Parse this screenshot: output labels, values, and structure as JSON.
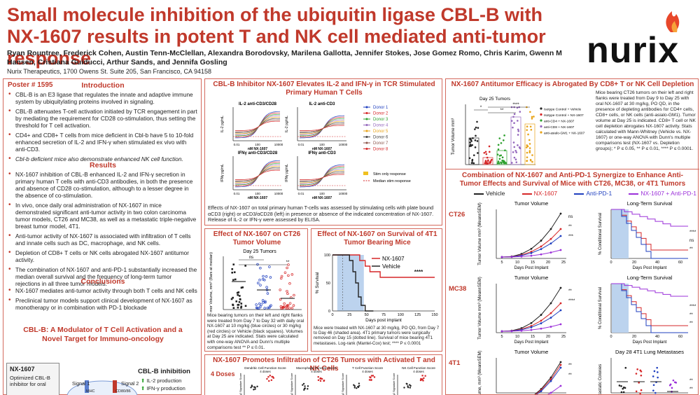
{
  "header": {
    "title": "Small molecule inhibition of the ubiquitin ligase CBL-B with NX-1607 results in potent T and NK cell mediated anti-tumor response",
    "authors": "Ryan Rountree, Frederick Cohen, Austin Tenn-McClellan, Alexandra Borodovsky, Marilena Gallotta, Jennifer Stokes, Jose Gomez Romo, Chris Karim, Gwenn M Hansen, Cristiana Guiducci, Arthur Sands, and Jennifa Gosling",
    "affiliation": "Nurix Therapeutics, 1700 Owens St. Suite 205, San Francisco, CA 94158",
    "logo_text": "nurix"
  },
  "col1": {
    "poster_no": "Poster # 1595",
    "intro_title": "Introduction",
    "intro": [
      "CBL-B is an E3 ligase that regulates the innate and adaptive immune system by ubiquitylating proteins involved in signaling.",
      "CBL-B attenuates T-cell activation initiated by TCR engagement in part by mediating the requirement for CD28 co-stimulation, thus setting the threshold for T cell activation.",
      "CD4+ and CD8+ T cells from mice deficient in Cbl-b have 5 to 10-fold enhanced secretion of IL-2 and IFN-γ when stimulated ex vivo with anti-CD3.",
      "Cbl-b deficient mice also demonstrate enhanced NK cell function."
    ],
    "results_title": "Results",
    "results": [
      "NX-1607 inhibition of CBL-B enhanced IL-2 and IFN-γ secretion in primary human T cells with anti-CD3 antibodies, in both the presence and absence of CD28 co-stimulation, although to a lesser degree in the absence of co-stimulation.",
      "In vivo, once daily oral administration of NX-1607 in mice demonstrated significant anti-tumor activity in two colon carcinoma tumor models, CT26 and MC38, as well as a metastatic triple-negative breast tumor model, 4T1.",
      "Anti-tumor activity of NX-1607 is associated with infiltration of T cells and innate cells such as DC, macrophage, and NK cells.",
      "Depletion of CD8+ T cells or NK cells abrogated NX-1607 antitumor activity.",
      "The combination of NX-1607 and anti-PD-1 substantially increased the median overall survival and the frequency of long-term tumor rejections in all three tumor models."
    ],
    "conclusions_title": "Conclusions",
    "conclusions": [
      "NX-1607 mediates anti-tumor activity through both T cells and NK cells",
      "Preclinical tumor models support clinical development of NX-1607 as monotherapy or in combination with PD-1 blockade"
    ],
    "diagram_title": "CBL-B: A Modulator of T Cell Activation and a Novel Target for Immuno-oncology",
    "box_title": "NX-1607",
    "box_text": "Optimized CBL-B inhibitor for oral",
    "signal1": "Signal 1",
    "signal2": "Signal 2",
    "mhc": "MHC",
    "cd80": "CD80/86",
    "inhib_title": "CBL-B inhibition",
    "inhib_items": [
      "IL-2 production",
      "IFN-γ production"
    ]
  },
  "col2": {
    "panel1_title": "CBL-B Inhibitor NX-1607 Elevates IL-2 and IFN-γ in TCR Stimulated Primary Human T Cells",
    "p1_chart_titles": [
      "IL-2 anti-CD3/CD28",
      "IL-2 anti-CD3",
      "IFNγ anti-CD3/CD28",
      "IFNγ anti-CD3"
    ],
    "p1_ylabels": [
      "IL-2 pg/mL",
      "IL-2 pg/mL",
      "IFNγ pg/mL",
      "IFNγ pg/mL"
    ],
    "p1_xlabel": "nM NX-1607",
    "p1_xticks": [
      "0.01",
      "100",
      "10000"
    ],
    "donors": [
      {
        "name": "Donor 1",
        "color": "#1f3fbf"
      },
      {
        "name": "Donor 2",
        "color": "#d62728"
      },
      {
        "name": "Donor 3",
        "color": "#2ca02c"
      },
      {
        "name": "Donor 4",
        "color": "#9467bd"
      },
      {
        "name": "Donor 5",
        "color": "#e8a317"
      },
      {
        "name": "Donor 6",
        "color": "#444444"
      },
      {
        "name": "Donor 7",
        "color": "#8c564b"
      },
      {
        "name": "Donor 8",
        "color": "#d62728"
      }
    ],
    "stim_only": "Stim only response",
    "median_stim": "Median stim response",
    "panel1_caption": "Effects of NX-1607 on total primary human T-cells was assessed by stimulating cells with plate bound αCD3 (right) or αCD3/αCD28 (left) in presence or absence of the indicated concentration of NX-1607. Release of IL-2 or IFN-γ were assessed by ELISA.",
    "panel2_title": "Effect of NX-1607 on CT26 Tumor Volume",
    "p2_subtitle": "Day 25 Tumors",
    "p2_ylabel": "Tumor Volume, mm³ (Bars at median)",
    "p2_sig": [
      "ns",
      "**"
    ],
    "panel2_caption": "Mice bearing tumors on their left and right flanks were treated from Day 7 to Day 32 with daily oral NX-1607 at 10 mg/kg (blue circles) or 30 mg/kg (red circles) or Vehicle (black squares). Volumes at Day 25 are indicated. Stats were calculated with one-way ANOVA and Dunn's multiple comparisons test ** P ≤ 0.01.",
    "panel3_title": "Effect of NX-1607 on Survival of 4T1 Tumor Bearing Mice",
    "p3_legend": [
      "NX-1607",
      "Vehicle"
    ],
    "p3_ylabel": "% Survival",
    "p3_xlabel": "Days post implant",
    "p3_xticks": [
      "0",
      "25",
      "50",
      "75",
      "100",
      "125",
      "150"
    ],
    "p3_yticks": [
      "0",
      "50",
      "100"
    ],
    "p3_sig": "****",
    "panel3_caption": "Mice were treated with NX-1607 at 30 mg/kg, PO QD, from Day 7 to Day 46 (shaded area). 4T1 primary tumors were surgically removed on Day 15 (dotted line). Survival of mice bearing 4T1 metastases. Log-rank (Mantel-Cox) test; **** P ≤ 0.0001",
    "panel4_title": "NX-1607 Promotes Infiltration of CT26 Tumors with Activated T and NK Cells",
    "p4_label": "4 Doses",
    "p4_chart_titles": [
      "Dendritic Cell Function Score 4 doses",
      "Macrophage Function Score 4 doses",
      "T Cell Function Score 4 doses",
      "NK Cell Function Score 4 doses"
    ],
    "p4_ylabel": "Log2 Signature Score"
  },
  "col3": {
    "panel5_title": "NX-1607 Antitumor Efficacy is Abrogated By CD8+ T or NK Cell Depletion",
    "p5_subtitle": "Day 25 Tumors",
    "p5_ylabel": "Tumor Volume mm³",
    "p5_legend": [
      {
        "name": "Isotype Control + Vehicle",
        "color": "#222222"
      },
      {
        "name": "Isotype Control + NX-1607",
        "color": "#d62728"
      },
      {
        "name": "anti-CD4 + NX-1607",
        "color": "#2ca02c"
      },
      {
        "name": "anti-CD8 + NX-1607",
        "color": "#9467bd"
      },
      {
        "name": "anti-asialo-GM1 + NX-1607",
        "color": "#e8a317"
      }
    ],
    "p5_sig": [
      "*",
      "**",
      "****"
    ],
    "panel5_caption": "Mice bearing CT26 tumors on their left and right flanks were treated from Day 9 to Day 25 with oral NX-1607 at 30 mg/kg, PO QD, in the presence of depleting antibodies for CD4+ cells, CD8+ cells, or NK cells (anti-asialo-GM1). Tumor volume at Day 25 is indicated. CD8+ T cell or NK cell depletion abrogates NX-1607 activity. Stats calculated with Mann-Whitney (Vehicle vs. NX-1607) or one-way ANOVA with Dunn's multiple comparisons test (NX-1607 vs. Depletion groups); * P ≤ 0.05, ** P ≤ 0.01, **** P ≤ 0.0001.",
    "panel6_title": "Combination of NX-1607 and Anti-PD-1 Synergize to Enhance Anti-Tumor Effects and Survival of Mice with CT26, MC38, or 4T1 Tumors",
    "combo_legend": [
      {
        "name": "Vehicle",
        "color": "#222222"
      },
      {
        "name": "NX-1607",
        "color": "#d62728"
      },
      {
        "name": "Anti-PD-1",
        "color": "#1f3fbf"
      },
      {
        "name": "NX-1607 + Anti-PD-1",
        "color": "#9b30d9"
      }
    ],
    "rows": [
      {
        "label": "CT26",
        "left_title": "Tumor Volume",
        "right_title": "Long-Term Survival",
        "left_ylabel": "Tumor Volume mm³ (Mean±SEM)",
        "right_ylabel": "% Conditional Survival",
        "left_xlabel": "Days Post Implant",
        "right_xlabel": "Days Post Implant",
        "sig_left": [
          "ns",
          "**",
          "***"
        ],
        "sig_right": [
          "****",
          "ns",
          "**"
        ]
      },
      {
        "label": "MC38",
        "left_title": "Tumor Volume",
        "right_title": "Long-Term Survival",
        "left_ylabel": "Tumor Volume mm³ (Mean±SEM)",
        "right_ylabel": "% Conditional Survival",
        "left_xlabel": "Days Post Implant",
        "right_xlabel": "Days Post Implant",
        "sig_left": [
          "**",
          "****"
        ],
        "sig_right": [
          "****",
          "**",
          "**"
        ]
      },
      {
        "label": "4T1",
        "left_title": "Tumor Volume",
        "right_title": "Day 28 4T1 Lung Metastases",
        "left_ylabel": "Tumor Volume, mm³ (Mean±SEM)",
        "right_ylabel": "Metastatic Colonies",
        "left_xlabel": "",
        "right_xlabel": "",
        "sig_left": [
          "**",
          "**"
        ],
        "sig_right": [
          "**",
          "**",
          "*"
        ]
      }
    ],
    "ct26_xticks": [
      "5",
      "10",
      "15",
      "20",
      "25"
    ],
    "mc38_xticks": [
      "5",
      "10",
      "15",
      "20",
      "25"
    ],
    "surv_xticks": [
      "0",
      "20",
      "40",
      "60"
    ],
    "mc38_surv_xticks": [
      "0",
      "20",
      "40",
      "60"
    ]
  }
}
